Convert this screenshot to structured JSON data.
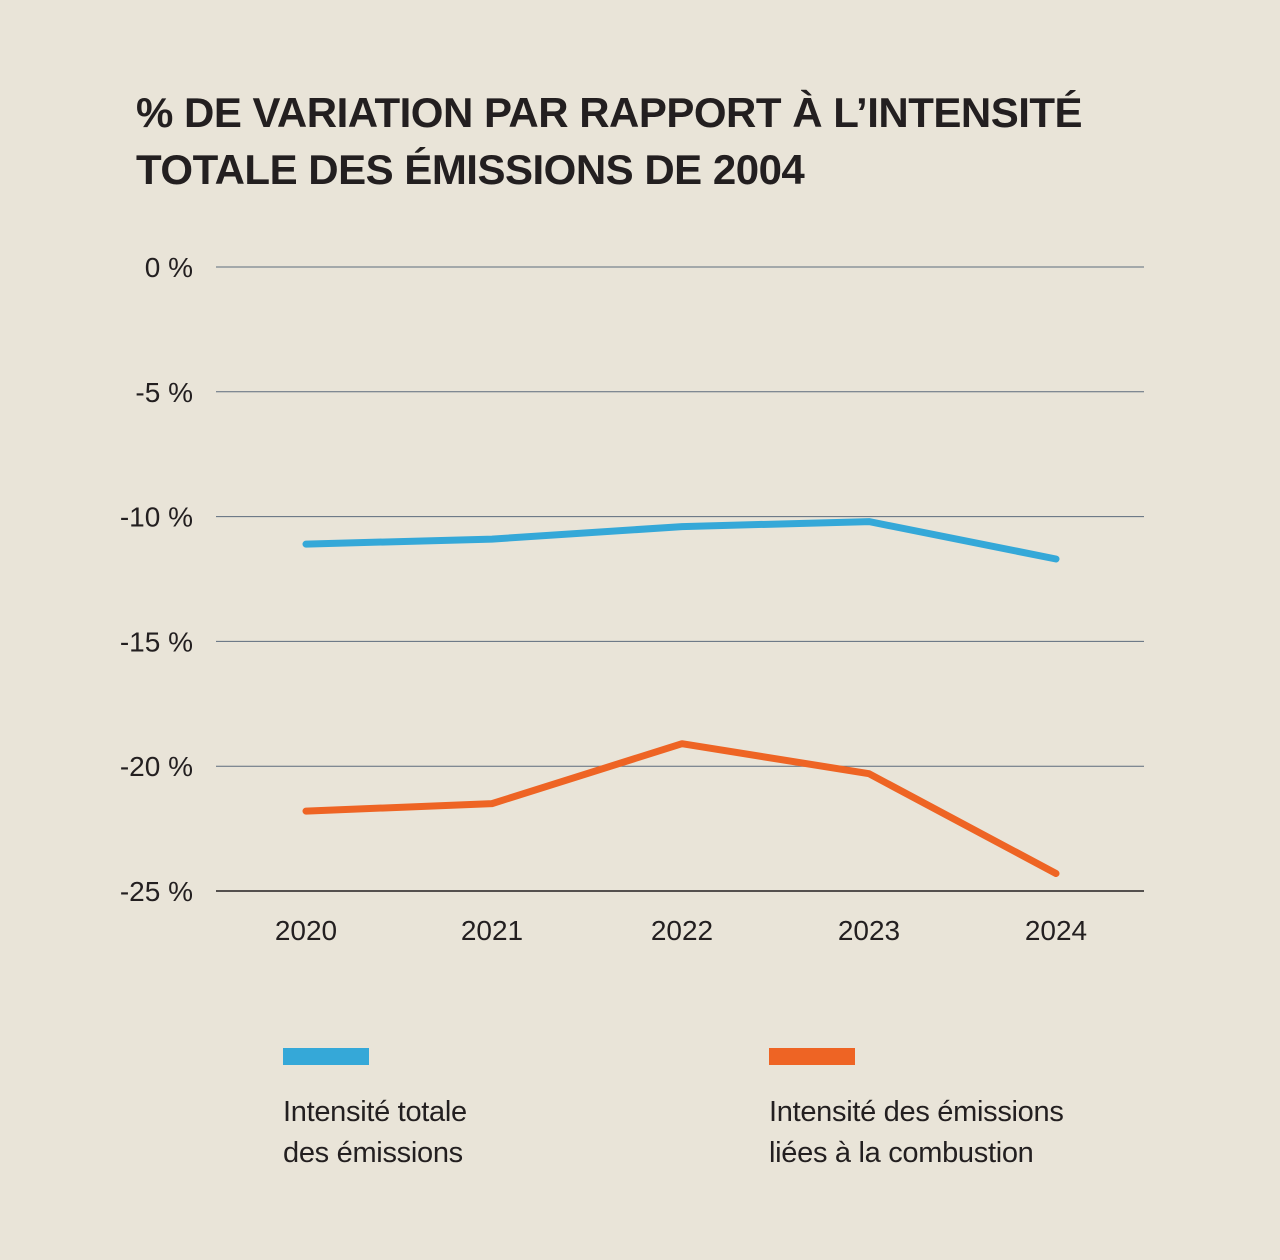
{
  "title_lines": [
    "% DE VARIATION PAR RAPPORT À L’INTENSITÉ",
    "TOTALE DES ÉMISSIONS DE 2004"
  ],
  "colors": {
    "background": "#e9e4d8",
    "text": "#231f20",
    "gridline": "#5d6b7c",
    "series_total": "#35a8d8",
    "series_combustion": "#ee6424"
  },
  "chart_data": {
    "type": "line",
    "x": [
      "2020",
      "2021",
      "2022",
      "2023",
      "2024"
    ],
    "ylim": [
      -25,
      0
    ],
    "yticks": [
      0,
      -5,
      -10,
      -15,
      -20,
      -25
    ],
    "ytick_labels": [
      "0 %",
      "-5 %",
      "-10 %",
      "-15 %",
      "-20 %",
      "-25 %"
    ],
    "grid": true,
    "legend_position": "bottom",
    "series": [
      {
        "name_lines": [
          "Intensité totale",
          "des émissions"
        ],
        "color": "#35a8d8",
        "values": [
          -11.1,
          -10.9,
          -10.4,
          -10.2,
          -11.7
        ]
      },
      {
        "name_lines": [
          "Intensité des émissions",
          "liées à la combustion"
        ],
        "color": "#ee6424",
        "values": [
          -21.8,
          -21.5,
          -19.1,
          -20.3,
          -24.3
        ]
      }
    ]
  }
}
